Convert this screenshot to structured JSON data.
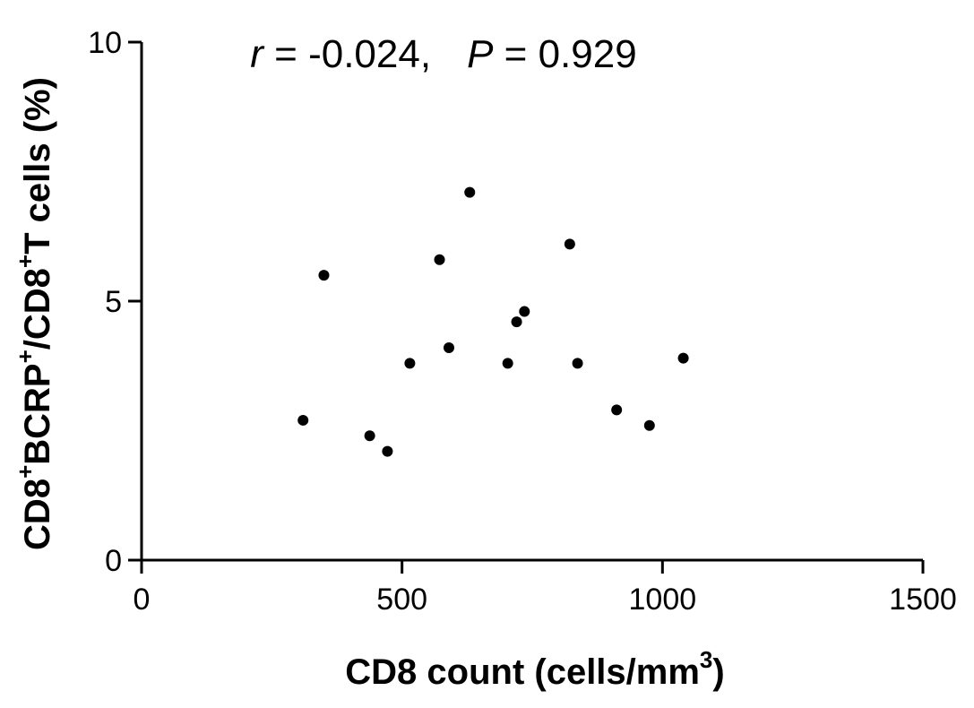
{
  "chart_data": {
    "type": "scatter",
    "xlabel": "CD8 count (cells/mm3)",
    "xlabel_parts": {
      "main": "CD8  count (cells/mm",
      "sup": "3",
      "end": ")"
    },
    "ylabel": "CD8+BCRP+/CD8+T cells (%)",
    "ylabel_parts": [
      {
        "text": "CD8",
        "sup": false
      },
      {
        "text": "+",
        "sup": true
      },
      {
        "text": "BCRP",
        "sup": false
      },
      {
        "text": "+",
        "sup": true
      },
      {
        "text": "/CD8",
        "sup": false
      },
      {
        "text": "+",
        "sup": true
      },
      {
        "text": "T cells (%)",
        "sup": false
      }
    ],
    "annotation": {
      "r_symbol": "r",
      "r_value": " = -0.024,",
      "p_symbol": "P",
      "p_value": " = 0.929"
    },
    "xlim": [
      0,
      1500
    ],
    "ylim": [
      0,
      10
    ],
    "xticks": [
      0,
      500,
      1000,
      1500
    ],
    "yticks": [
      0,
      5,
      10
    ],
    "xtick_labels": [
      "0",
      "500",
      "1000",
      "1500"
    ],
    "ytick_labels": [
      "0",
      "5",
      "10"
    ],
    "points": [
      {
        "x": 310,
        "y": 2.7
      },
      {
        "x": 350,
        "y": 5.5
      },
      {
        "x": 438,
        "y": 2.4
      },
      {
        "x": 472,
        "y": 2.1
      },
      {
        "x": 515,
        "y": 3.8
      },
      {
        "x": 572,
        "y": 5.8
      },
      {
        "x": 590,
        "y": 4.1
      },
      {
        "x": 630,
        "y": 7.1
      },
      {
        "x": 703,
        "y": 3.8
      },
      {
        "x": 720,
        "y": 4.6
      },
      {
        "x": 735,
        "y": 4.8
      },
      {
        "x": 822,
        "y": 6.1
      },
      {
        "x": 837,
        "y": 3.8
      },
      {
        "x": 912,
        "y": 2.9
      },
      {
        "x": 975,
        "y": 2.6
      },
      {
        "x": 1040,
        "y": 3.9
      }
    ],
    "grid": false,
    "legend": "none"
  }
}
